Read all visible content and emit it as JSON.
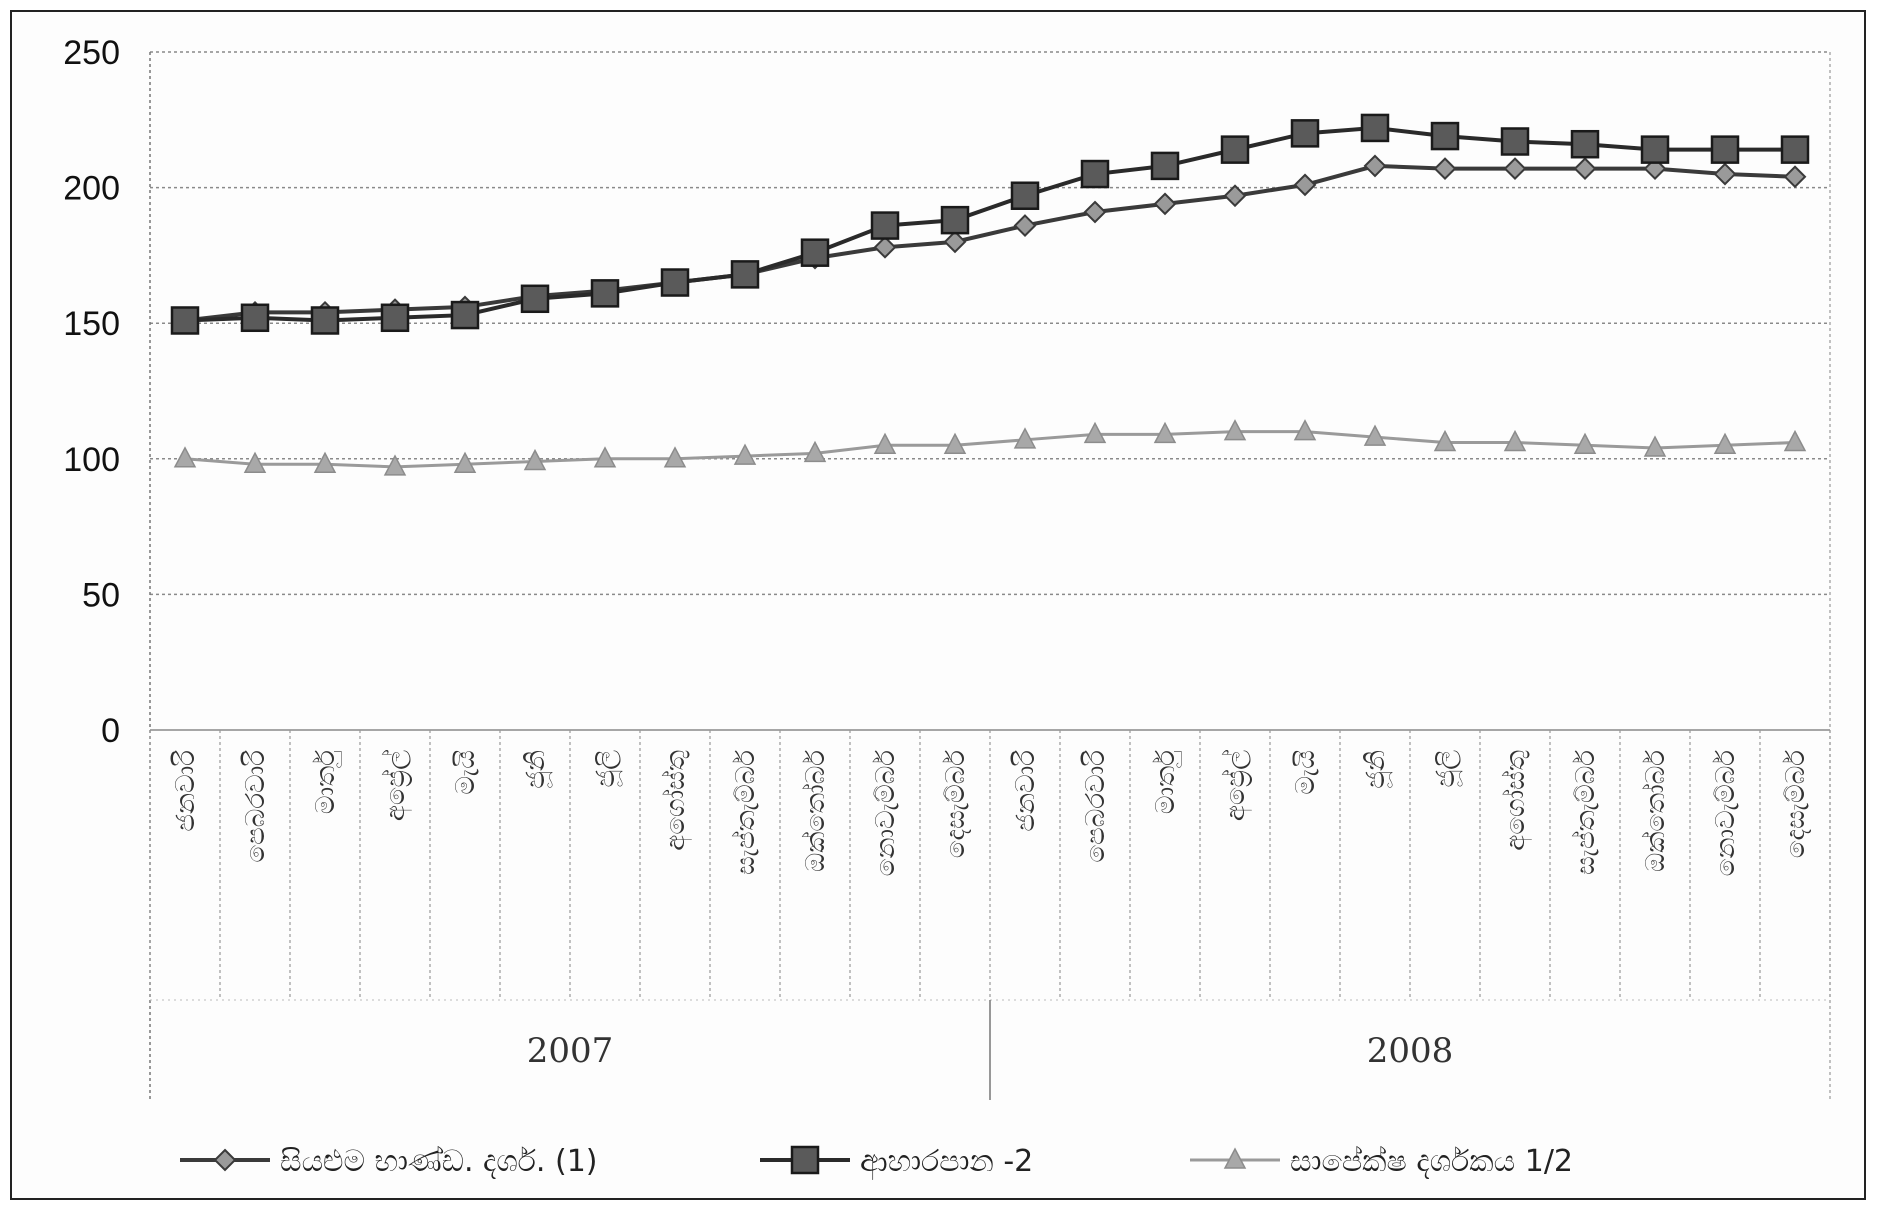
{
  "chart_data": {
    "type": "line",
    "title": "",
    "xlabel": "",
    "ylabel": "",
    "ylim": [
      0,
      250
    ],
    "yticks": [
      0,
      50,
      100,
      150,
      200,
      250
    ],
    "grid": true,
    "legend_position": "bottom",
    "categories": [
      "ජනවාරි",
      "පෙබරවාරි",
      "මාර්තු",
      "අප්‍රේල්",
      "මැයි",
      "ජූනි",
      "ජූලි",
      "අගෝස්තු",
      "සැප්තැම්බර්",
      "ඔක්තෝබර්",
      "නොවැම්බර්",
      "දෙසැම්බර්",
      "ජනවාරි",
      "පෙබරවාරි",
      "මාර්තු",
      "අප්‍රේල්",
      "මැයි",
      "ජූනි",
      "ජූලි",
      "අගෝස්තු",
      "සැප්තැම්බර්",
      "ඔක්තෝබර්",
      "නොවැම්බර්",
      "දෙසැම්බර්"
    ],
    "groups": [
      {
        "label": "2007",
        "count": 12
      },
      {
        "label": "2008",
        "count": 12
      }
    ],
    "series": [
      {
        "name": "සියළුම භාණ්ඩ. දර්ශ. (1)",
        "marker": "diamond",
        "color": "#3a3a3a",
        "values": [
          151,
          154,
          154,
          155,
          156,
          160,
          162,
          165,
          168,
          174,
          178,
          180,
          186,
          191,
          194,
          197,
          201,
          208,
          207,
          207,
          207,
          207,
          205,
          204
        ]
      },
      {
        "name": "ආහාරපාන -2",
        "marker": "square",
        "color": "#2a2a2a",
        "values": [
          151,
          152,
          151,
          152,
          153,
          159,
          161,
          165,
          168,
          176,
          186,
          188,
          197,
          205,
          208,
          214,
          220,
          222,
          219,
          217,
          216,
          214,
          214,
          214
        ]
      },
      {
        "name": "සාපේක්ෂ දර්ශකය 1/2",
        "marker": "triangle",
        "color": "#9a9a9a",
        "values": [
          100,
          98,
          98,
          97,
          98,
          99,
          100,
          100,
          101,
          102,
          105,
          105,
          107,
          109,
          109,
          110,
          110,
          108,
          106,
          106,
          105,
          104,
          105,
          106
        ]
      }
    ]
  }
}
